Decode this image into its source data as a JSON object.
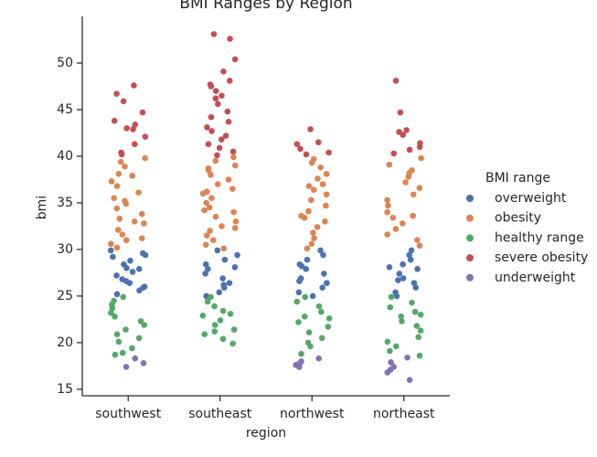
{
  "chart_data": {
    "type": "strip",
    "title": "BMI Ranges by Region",
    "x_label": "region",
    "y_label": "bmi",
    "legend_title": "BMI range",
    "legend_position": "right",
    "categories": [
      "southwest",
      "southeast",
      "northwest",
      "northeast"
    ],
    "ylim": [
      14.3,
      55
    ],
    "yticks": [
      15,
      20,
      25,
      30,
      35,
      40,
      45,
      50
    ],
    "series": [
      {
        "name": "overweight",
        "color": "#4c72b0",
        "values": [
          [
            29.9,
            29.6,
            29.2,
            28.8,
            28.4,
            28.0,
            27.6,
            27.2,
            26.8,
            26.4,
            26.0,
            25.6,
            25.2,
            29.4,
            27.9,
            26.6,
            25.9
          ],
          [
            29.9,
            29.4,
            28.9,
            28.4,
            27.9,
            27.4,
            26.9,
            26.4,
            25.9,
            25.4,
            25.0,
            28.1,
            26.2
          ],
          [
            29.9,
            29.4,
            28.9,
            28.4,
            27.9,
            27.4,
            26.9,
            26.4,
            25.9,
            25.4,
            25.0,
            28.2,
            26.6
          ],
          [
            29.9,
            29.4,
            28.9,
            28.4,
            27.9,
            27.4,
            26.9,
            26.4,
            25.9,
            25.4,
            25.0,
            28.1,
            26.7
          ]
        ]
      },
      {
        "name": "obesity",
        "color": "#dd8452",
        "values": [
          [
            39.8,
            39.4,
            38.9,
            38.1,
            37.3,
            36.8,
            36.1,
            35.5,
            34.9,
            34.4,
            33.8,
            33.3,
            32.8,
            32.1,
            31.6,
            31.0,
            30.6,
            30.2,
            37.9,
            35.2,
            33.0,
            31.2
          ],
          [
            39.9,
            39.5,
            39.0,
            38.5,
            38.0,
            37.5,
            37.0,
            36.5,
            36.0,
            35.5,
            35.0,
            34.5,
            34.0,
            33.5,
            33.0,
            32.5,
            32.0,
            31.5,
            31.0,
            30.5,
            30.1,
            38.7,
            36.2,
            34.2,
            32.3
          ],
          [
            39.7,
            39.3,
            38.8,
            38.1,
            37.6,
            37.0,
            36.4,
            35.9,
            35.3,
            34.7,
            34.1,
            33.6,
            33.0,
            32.4,
            31.8,
            31.2,
            30.6,
            30.1,
            36.8,
            33.4
          ],
          [
            39.8,
            39.1,
            38.5,
            37.8,
            37.2,
            36.6,
            35.9,
            35.3,
            34.7,
            34.0,
            33.4,
            32.8,
            32.2,
            31.6,
            31.0,
            30.4,
            38.2,
            33.6
          ]
        ]
      },
      {
        "name": "healthy range",
        "color": "#55a868",
        "values": [
          [
            24.9,
            24.5,
            24.1,
            23.7,
            23.2,
            22.8,
            22.3,
            21.9,
            21.4,
            20.9,
            20.5,
            20.1,
            19.4,
            18.9,
            18.7
          ],
          [
            24.9,
            24.4,
            23.9,
            23.4,
            22.9,
            22.4,
            21.9,
            21.4,
            20.9,
            20.4,
            19.9,
            23.1,
            21.2
          ],
          [
            24.9,
            24.4,
            23.9,
            23.3,
            22.8,
            22.2,
            21.7,
            21.1,
            20.5,
            20.0,
            19.6,
            18.8,
            22.6
          ],
          [
            24.9,
            24.3,
            23.8,
            23.3,
            22.8,
            22.3,
            21.8,
            21.3,
            20.6,
            20.1,
            19.6,
            19.1,
            18.6,
            23.0
          ]
        ]
      },
      {
        "name": "severe obesity",
        "color": "#c44e52",
        "values": [
          [
            47.6,
            46.7,
            45.9,
            44.7,
            43.8,
            43.4,
            43.0,
            42.9,
            42.1,
            41.3,
            40.4,
            40.2
          ],
          [
            53.1,
            52.6,
            50.4,
            49.1,
            48.1,
            47.7,
            47.5,
            47.0,
            46.5,
            46.2,
            45.6,
            44.8,
            44.2,
            43.7,
            43.1,
            42.7,
            42.2,
            41.8,
            41.3,
            40.9,
            40.5,
            40.1
          ],
          [
            42.9,
            41.5,
            41.3,
            40.8,
            40.4,
            40.2
          ],
          [
            48.1,
            44.7,
            42.8,
            42.6,
            42.3,
            41.4,
            41.0,
            40.7,
            40.3
          ]
        ]
      },
      {
        "name": "underweight",
        "color": "#8172b3",
        "values": [
          [
            18.3,
            17.8,
            17.4
          ],
          [],
          [
            18.3,
            18.0,
            17.8,
            17.6,
            17.4
          ],
          [
            18.4,
            17.9,
            17.4,
            17.1,
            16.8,
            16.0
          ]
        ]
      }
    ]
  }
}
